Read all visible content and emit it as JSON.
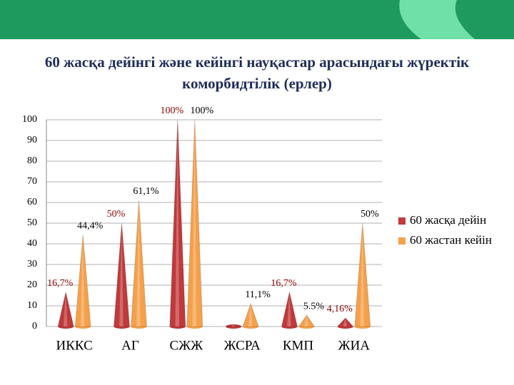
{
  "chart_data": {
    "type": "bar",
    "title": "60 жасқа дейінгі және кейінгі науқастар арасындағы жүректік коморбидтілік (ерлер)",
    "categories": [
      "ИККС",
      "АГ",
      "СЖЖ",
      "ЖСРА",
      "КМП",
      "ЖИА"
    ],
    "series": [
      {
        "name": "60 жасқа дейін",
        "color": "#c0393b",
        "values": [
          16.7,
          50,
          100,
          1,
          16.7,
          4.16
        ],
        "value_labels": [
          "16,7%",
          "50%",
          "100%",
          null,
          "16,7%",
          "4,16%"
        ]
      },
      {
        "name": "60 жастан кейін",
        "color": "#f5a04a",
        "values": [
          44.4,
          61.1,
          100,
          11.1,
          5.5,
          50
        ],
        "value_labels": [
          "44,4%",
          "61,1%",
          "100%",
          "11,1%",
          "5.5%",
          "50%"
        ]
      }
    ],
    "ylim": [
      0,
      100
    ],
    "yticks": [
      0,
      10,
      20,
      30,
      40,
      50,
      60,
      70,
      80,
      90,
      100
    ],
    "grid": true,
    "legend": "right"
  }
}
